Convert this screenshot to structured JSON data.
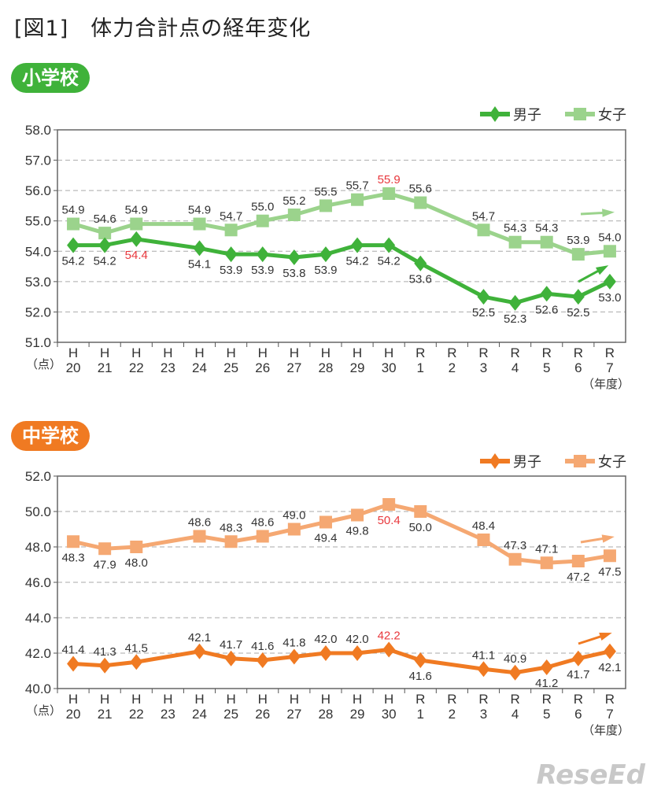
{
  "title": "[図1]　体力合計点の経年変化",
  "watermark": "ReseEd",
  "chart_data": [
    {
      "type": "line",
      "section_label": "小学校",
      "accent": "#3fb23a",
      "categories": [
        [
          "H",
          "20"
        ],
        [
          "H",
          "21"
        ],
        [
          "H",
          "22"
        ],
        [
          "H",
          "23"
        ],
        [
          "H",
          "24"
        ],
        [
          "H",
          "25"
        ],
        [
          "H",
          "26"
        ],
        [
          "H",
          "27"
        ],
        [
          "H",
          "28"
        ],
        [
          "H",
          "29"
        ],
        [
          "H",
          "30"
        ],
        [
          "R",
          "1"
        ],
        [
          "R",
          "2"
        ],
        [
          "R",
          "3"
        ],
        [
          "R",
          "4"
        ],
        [
          "R",
          "5"
        ],
        [
          "R",
          "6"
        ],
        [
          "R",
          "7"
        ]
      ],
      "ylabel": "（点）",
      "xlabel": "（年度）",
      "ylim": [
        51,
        58
      ],
      "yticks": [
        "51.0",
        "52.0",
        "53.0",
        "54.0",
        "55.0",
        "56.0",
        "57.0",
        "58.0"
      ],
      "grid": "dashed horizontal",
      "legend_position": "top-right",
      "highlight_color": "#e8383d",
      "series": [
        {
          "name": "男子",
          "marker": "diamond",
          "color": "#3fb23a",
          "values": [
            54.2,
            54.2,
            54.4,
            null,
            54.1,
            53.9,
            53.9,
            53.8,
            53.9,
            54.2,
            54.2,
            53.6,
            null,
            52.5,
            52.3,
            52.6,
            52.5,
            53.0
          ],
          "highlight_index": 2
        },
        {
          "name": "女子",
          "marker": "square",
          "color": "#9bd38c",
          "values": [
            54.9,
            54.6,
            54.9,
            null,
            54.9,
            54.7,
            55.0,
            55.2,
            55.5,
            55.7,
            55.9,
            55.6,
            null,
            54.7,
            54.3,
            54.3,
            53.9,
            54.0
          ],
          "highlight_index": 10
        }
      ]
    },
    {
      "type": "line",
      "section_label": "中学校",
      "accent": "#f07a22",
      "categories": [
        [
          "H",
          "20"
        ],
        [
          "H",
          "21"
        ],
        [
          "H",
          "22"
        ],
        [
          "H",
          "23"
        ],
        [
          "H",
          "24"
        ],
        [
          "H",
          "25"
        ],
        [
          "H",
          "26"
        ],
        [
          "H",
          "27"
        ],
        [
          "H",
          "28"
        ],
        [
          "H",
          "29"
        ],
        [
          "H",
          "30"
        ],
        [
          "R",
          "1"
        ],
        [
          "R",
          "2"
        ],
        [
          "R",
          "3"
        ],
        [
          "R",
          "4"
        ],
        [
          "R",
          "5"
        ],
        [
          "R",
          "6"
        ],
        [
          "R",
          "7"
        ]
      ],
      "ylabel": "（点）",
      "xlabel": "（年度）",
      "ylim": [
        40,
        52
      ],
      "yticks": [
        "40.0",
        "42.0",
        "44.0",
        "46.0",
        "48.0",
        "50.0",
        "52.0"
      ],
      "grid": "dashed horizontal",
      "legend_position": "top-right",
      "highlight_color": "#e8383d",
      "series": [
        {
          "name": "男子",
          "marker": "diamond",
          "color": "#f07a22",
          "values": [
            41.4,
            41.3,
            41.5,
            null,
            42.1,
            41.7,
            41.6,
            41.8,
            42.0,
            42.0,
            42.2,
            41.6,
            null,
            41.1,
            40.9,
            41.2,
            41.7,
            42.1
          ],
          "highlight_index": 10
        },
        {
          "name": "女子",
          "marker": "square",
          "color": "#f5a872",
          "values": [
            48.3,
            47.9,
            48.0,
            null,
            48.6,
            48.3,
            48.6,
            49.0,
            49.4,
            49.8,
            50.4,
            50.0,
            null,
            48.4,
            47.3,
            47.1,
            47.2,
            47.5
          ],
          "highlight_index": 10
        }
      ]
    }
  ]
}
